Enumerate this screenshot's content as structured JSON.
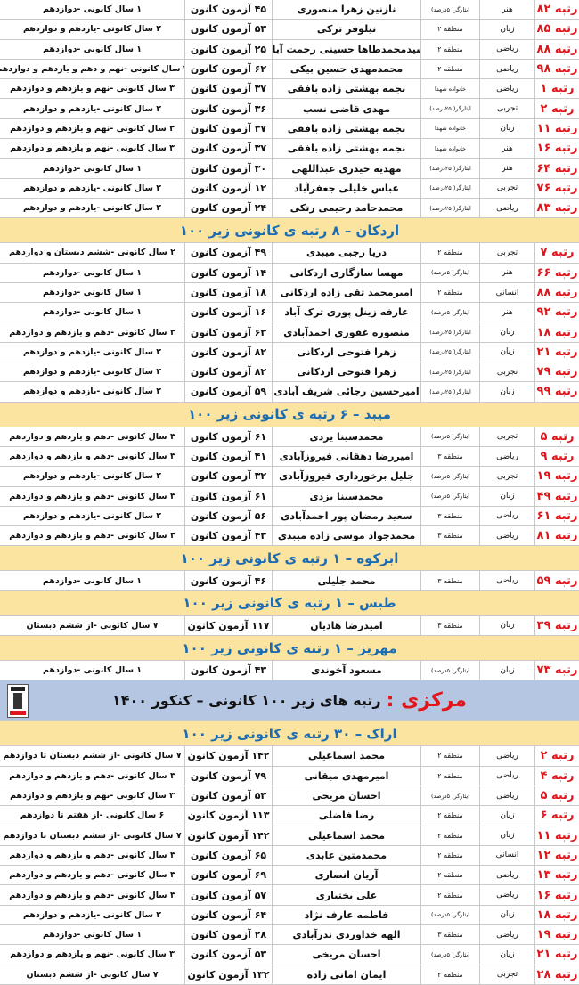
{
  "sections": [
    {
      "title": "",
      "rows": [
        [
          "رتبه ۸۲",
          "هنر",
          "ایثارگر( ۵درصد)",
          "نازنین زهرا منصوری",
          "۴۵ آزمون کانون",
          "۱ سال کانونی -دوازدهم"
        ],
        [
          "رتبه ۸۵",
          "زبان",
          "منطقه ۲",
          "نیلوفر ترکی",
          "۵۳ آزمون کانون",
          "۲ سال کانونی -یازدهم و دوازدهم"
        ],
        [
          "رتبه ۸۸",
          "ریاضی",
          "منطقه ۲",
          "سیدمحمدطاها حسینی رحمت آباد",
          "۲۵ آزمون کانون",
          "۱ سال کانونی -دوازدهم"
        ],
        [
          "رتبه ۹۸",
          "ریاضی",
          "منطقه ۲",
          "محمدمهدی حسین بیکی",
          "۶۲ آزمون کانون",
          "۴ سال کانونی -نهم و دهم و یازدهم و دوازدهم"
        ],
        [
          "رتبه ۱",
          "ریاضی",
          "خانواده شهدا",
          "نجمه بهشتی زاده بافقی",
          "۳۷ آزمون کانون",
          "۳ سال کانونی -نهم و یازدهم و دوازدهم"
        ],
        [
          "رتبه ۲",
          "تجربی",
          "ایثارگر( ۲۵درصد)",
          "مهدی قاضی نسب",
          "۳۶ آزمون کانون",
          "۲ سال کانونی -یازدهم و دوازدهم"
        ],
        [
          "رتبه ۱۱",
          "زبان",
          "خانواده شهدا",
          "نجمه بهشتی زاده بافقی",
          "۳۷ آزمون کانون",
          "۳ سال کانونی -نهم و یازدهم و دوازدهم"
        ],
        [
          "رتبه ۱۶",
          "هنر",
          "خانواده شهدا",
          "نجمه بهشتی زاده بافقی",
          "۳۷ آزمون کانون",
          "۳ سال کانونی -نهم و یازدهم و دوازدهم"
        ],
        [
          "رتبه ۶۴",
          "هنر",
          "ایثارگر( ۲۵درصد)",
          "مهدیه حیدری عبداللهی",
          "۳۰ آزمون کانون",
          "۱ سال کانونی -دوازدهم"
        ],
        [
          "رتبه ۷۶",
          "تجربی",
          "ایثارگر( ۲۵درصد)",
          "عباس خلیلی جعفرآباد",
          "۱۲ آزمون کانون",
          "۲ سال کانونی -یازدهم و دوازدهم"
        ],
        [
          "رتبه ۸۳",
          "ریاضی",
          "ایثارگر( ۲۵درصد)",
          "محمدحامد رحیمی رتکی",
          "۲۴ آزمون کانون",
          "۲ سال کانونی -یازدهم و دوازدهم"
        ]
      ]
    },
    {
      "title": "اردکان – ۸ رتبه ی کانونی زیر ۱۰۰",
      "rows": [
        [
          "رتبه ۷",
          "تجربی",
          "منطقه ۲",
          "دریا رجبی میبدی",
          "۴۹ آزمون کانون",
          "۲ سال کانونی -ششم دبستان و دوازدهم"
        ],
        [
          "رتبه ۶۶",
          "هنر",
          "ایثارگر( ۵درصد)",
          "مهسا سازگاری اردکانی",
          "۱۴ آزمون کانون",
          "۱ سال کانونی -دوازدهم"
        ],
        [
          "رتبه ۸۸",
          "انسانی",
          "منطقه ۲",
          "امیرمحمد تقی زاده اردکانی",
          "۱۸ آزمون کانون",
          "۱ سال کانونی -دوازدهم"
        ],
        [
          "رتبه ۹۲",
          "هنر",
          "ایثارگر( ۵درصد)",
          "عارفه زینل پوری ترک آباد",
          "۱۶ آزمون کانون",
          "۱ سال کانونی -دوازدهم"
        ],
        [
          "رتبه ۱۸",
          "زبان",
          "ایثارگر( ۲۵درصد)",
          "منصوره غفوری احمدآبادی",
          "۶۳ آزمون کانون",
          "۳ سال کانونی -دهم و یازدهم و دوازدهم"
        ],
        [
          "رتبه ۲۱",
          "زبان",
          "ایثارگر( ۲۵درصد)",
          "زهرا فتوحی اردکانی",
          "۸۲ آزمون کانون",
          "۲ سال کانونی -یازدهم و دوازدهم"
        ],
        [
          "رتبه ۷۹",
          "تجربی",
          "ایثارگر( ۲۵درصد)",
          "زهرا فتوحی اردکانی",
          "۸۲ آزمون کانون",
          "۲ سال کانونی -یازدهم و دوازدهم"
        ],
        [
          "رتبه ۹۹",
          "زبان",
          "ایثارگر( ۲۵درصد)",
          "امیرحسین رجائی شریف آبادی",
          "۵۹ آزمون کانون",
          "۲ سال کانونی -یازدهم و دوازدهم"
        ]
      ]
    },
    {
      "title": "میبد – ۶ رتبه ی کانونی زیر ۱۰۰",
      "rows": [
        [
          "رتبه ۵",
          "تجربی",
          "ایثارگر( ۵درصد)",
          "محمدسینا یزدی",
          "۶۱ آزمون کانون",
          "۳ سال کانونی -دهم و یازدهم و دوازدهم"
        ],
        [
          "رتبه ۹",
          "ریاضی",
          "منطقه ۳",
          "امیررضا دهقانی فیروزآبادی",
          "۴۱ آزمون کانون",
          "۳ سال کانونی -دهم و یازدهم و دوازدهم"
        ],
        [
          "رتبه ۱۹",
          "تجربی",
          "ایثارگر( ۵درصد)",
          "جلیل برخورداری فیروزآبادی",
          "۳۲ آزمون کانون",
          "۲ سال کانونی -یازدهم و دوازدهم"
        ],
        [
          "رتبه ۴۹",
          "زبان",
          "ایثارگر( ۵درصد)",
          "محمدسینا یزدی",
          "۶۱ آزمون کانون",
          "۳ سال کانونی -دهم و یازدهم و دوازدهم"
        ],
        [
          "رتبه ۶۱",
          "ریاضی",
          "منطقه ۳",
          "سعید رمضان پور احمدآبادی",
          "۵۶ آزمون کانون",
          "۲ سال کانونی -یازدهم و دوازدهم"
        ],
        [
          "رتبه ۸۱",
          "ریاضی",
          "منطقه ۳",
          "محمدجواد موسی زاده میبدی",
          "۴۳ آزمون کانون",
          "۳ سال کانونی -دهم و یازدهم و دوازدهم"
        ]
      ]
    },
    {
      "title": "ابرکوه – ۱ رتبه ی کانونی زیر ۱۰۰",
      "rows": [
        [
          "رتبه ۵۹",
          "ریاضی",
          "منطقه ۳",
          "محمد جلیلی",
          "۴۶ آزمون کانون",
          "۱ سال کانونی -دوازدهم"
        ]
      ]
    },
    {
      "title": "طبس – ۱ رتبه ی کانونی زیر ۱۰۰",
      "rows": [
        [
          "رتبه ۳۹",
          "زبان",
          "منطقه ۳",
          "امیدرضا هادیان",
          "۱۱۷ آزمون کانون",
          "۷ سال کانونی -از ششم دبستان"
        ]
      ]
    },
    {
      "title": "مهریز – ۱ رتبه ی کانونی زیر ۱۰۰",
      "rows": [
        [
          "رتبه ۷۳",
          "زبان",
          "ایثارگر( ۵درصد)",
          "مسعود آخوندی",
          "۴۳ آزمون کانون",
          "۱ سال کانونی -دوازدهم"
        ]
      ]
    },
    {
      "banner": {
        "province": "مرکزی :",
        "text": "رتبه های زیر ۱۰۰ کانونی – کنکور ۱۴۰۰"
      }
    },
    {
      "title": "اراک – ۳۰ رتبه ی کانونی زیر ۱۰۰",
      "rows": [
        [
          "رتبه ۲",
          "ریاضی",
          "منطقه ۲",
          "محمد اسماعیلی",
          "۱۴۲ آزمون کانون",
          "۷ سال کانونی -از ششم دبستان تا دوازدهم"
        ],
        [
          "رتبه ۴",
          "ریاضی",
          "منطقه ۲",
          "امیرمهدی میقانی",
          "۷۹ آزمون کانون",
          "۳ سال کانونی -دهم و یازدهم و دوازدهم"
        ],
        [
          "رتبه ۵",
          "ریاضی",
          "ایثارگر( ۵درصد)",
          "احسان مریخی",
          "۵۳ آزمون کانون",
          "۳ سال کانونی -نهم و یازدهم و دوازدهم"
        ],
        [
          "رتبه ۶",
          "زبان",
          "منطقه ۲",
          "رضا فاضلی",
          "۱۱۳ آزمون کانون",
          "۶ سال کانونی -از هفتم تا دوازدهم"
        ],
        [
          "رتبه ۱۱",
          "زبان",
          "منطقه ۲",
          "محمد اسماعیلی",
          "۱۴۲ آزمون کانون",
          "۷ سال کانونی -از ششم دبستان تا دوازدهم"
        ],
        [
          "رتبه ۱۲",
          "انسانی",
          "منطقه ۲",
          "محمدمتین عابدی",
          "۶۵ آزمون کانون",
          "۳ سال کانونی -دهم و یازدهم و دوازدهم"
        ],
        [
          "رتبه ۱۳",
          "ریاضی",
          "منطقه ۲",
          "آریان انصاری",
          "۶۹ آزمون کانون",
          "۳ سال کانونی -دهم و یازدهم و دوازدهم"
        ],
        [
          "رتبه ۱۶",
          "ریاضی",
          "منطقه ۲",
          "علی بختیاری",
          "۵۷ آزمون کانون",
          "۳ سال کانونی -دهم و یازدهم و دوازدهم"
        ],
        [
          "رتبه ۱۸",
          "زبان",
          "ایثارگر( ۵درصد)",
          "فاطمه عارف نژاد",
          "۶۴ آزمون کانون",
          "۲ سال کانونی -یازدهم و دوازدهم"
        ],
        [
          "رتبه ۱۹",
          "ریاضی",
          "منطقه ۳",
          "الهه خداوردی ندرآبادی",
          "۲۸ آزمون کانون",
          "۱ سال کانونی -دوازدهم"
        ],
        [
          "رتبه ۲۱",
          "زبان",
          "ایثارگر( ۵درصد)",
          "احسان مریخی",
          "۵۳ آزمون کانون",
          "۳ سال کانونی -نهم و یازدهم و دوازدهم"
        ],
        [
          "رتبه ۲۸",
          "تجربی",
          "منطقه ۲",
          "ایمان امانی زاده",
          "۱۳۲ آزمون کانون",
          "۷ سال کانونی -از ششم دبستان"
        ]
      ]
    }
  ],
  "colors": {
    "rank": "#e0161b",
    "section_bg": "#fbe3a0",
    "section_text": "#1b6cb3",
    "banner_bg": "#b5c6e3"
  }
}
